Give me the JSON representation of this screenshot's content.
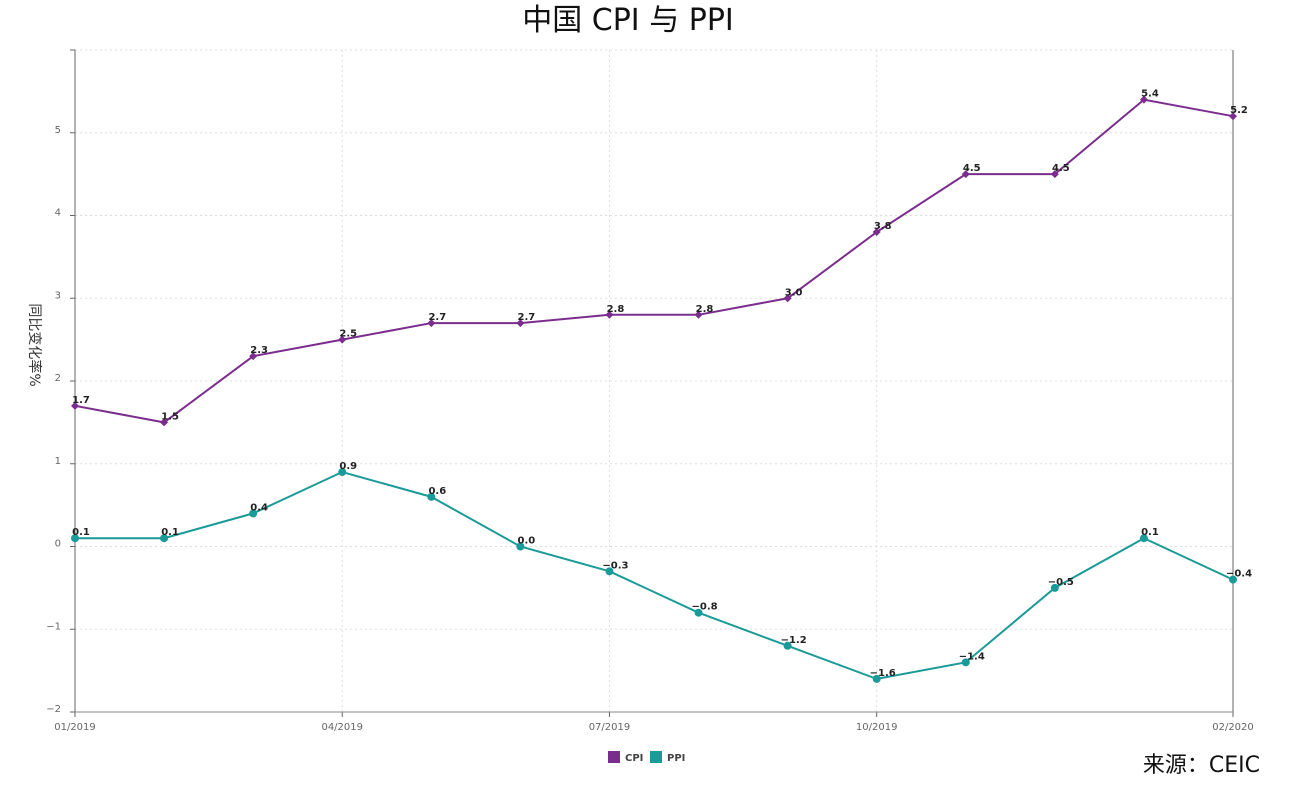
{
  "chart_data": {
    "type": "line",
    "title": "中国 CPI 与 PPI",
    "ylabel": "同比变化率%",
    "xlabel": "",
    "ylim": [
      -2,
      6
    ],
    "yticks": [
      -2,
      -1,
      0,
      1,
      2,
      3,
      4,
      5
    ],
    "ytick_labels": [
      "−2",
      "−1",
      "0",
      "1",
      "2",
      "3",
      "4",
      "5"
    ],
    "x": [
      "01/2019",
      "02/2019",
      "03/2019",
      "04/2019",
      "05/2019",
      "06/2019",
      "07/2019",
      "08/2019",
      "09/2019",
      "10/2019",
      "11/2019",
      "12/2019",
      "01/2020",
      "02/2020"
    ],
    "x_tick_labels": [
      "01/2019",
      "04/2019",
      "07/2019",
      "10/2019",
      "02/2020"
    ],
    "grid": true,
    "legend_position": "bottom-center",
    "series": [
      {
        "name": "CPI",
        "color": "#7b2d8e",
        "marker": "diamond",
        "values": [
          1.7,
          1.5,
          2.3,
          2.5,
          2.7,
          2.7,
          2.8,
          2.8,
          3.0,
          3.8,
          4.5,
          4.5,
          5.4,
          5.2
        ],
        "labels": [
          "1.7",
          "1.5",
          "2.3",
          "2.5",
          "2.7",
          "2.7",
          "2.8",
          "2.8",
          "3.0",
          "3.8",
          "4.5",
          "4.5",
          "5.4",
          "5.2"
        ]
      },
      {
        "name": "PPI",
        "color": "#1a9a98",
        "marker": "circle",
        "values": [
          0.1,
          0.1,
          0.4,
          0.9,
          0.6,
          0.0,
          -0.3,
          -0.8,
          -1.2,
          -1.6,
          -1.4,
          -0.5,
          0.1,
          -0.4
        ],
        "labels": [
          "0.1",
          "0.1",
          "0.4",
          "0.9",
          "0.6",
          "0.0",
          "−0.3",
          "−0.8",
          "−1.2",
          "−1.6",
          "−1.4",
          "−0.5",
          "0.1",
          "−0.4"
        ]
      }
    ]
  },
  "source_text": "来源：CEIC"
}
